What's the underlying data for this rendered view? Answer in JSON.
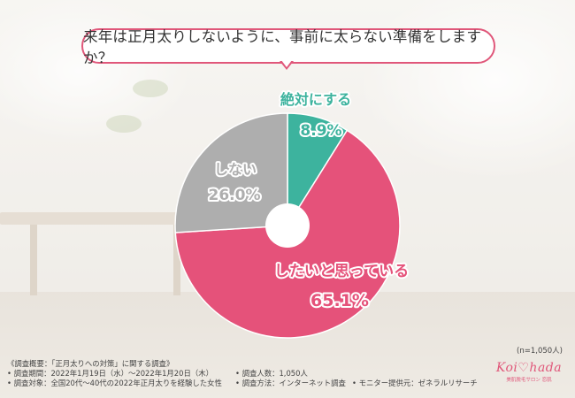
{
  "question": "来年は正月太りしないように、事前に太らない準備をしますか？",
  "chart_data": {
    "type": "pie",
    "title": "来年は正月太りしないように、事前に太らない準備をしますか？",
    "slices": [
      {
        "label": "絶対にする",
        "value": 8.9,
        "display": "8.9%",
        "color": "#3db39e"
      },
      {
        "label": "したいと思っている",
        "value": 65.1,
        "display": "65.1%",
        "color": "#e5527a"
      },
      {
        "label": "しない",
        "value": 26.0,
        "display": "26.0%",
        "color": "#aeaeae"
      }
    ],
    "sample_size": "(n=1,050人)"
  },
  "footnote": {
    "heading": "《調査概要：「正月太りへの対策」に関する調査》",
    "period": "• 調査期間：2022年1月19日（水）〜2022年1月20日（木）",
    "count": "• 調査人数：1,050人",
    "target": "• 調査対象：全国20代〜40代の2022年正月太りを経験した女性",
    "method": "• 調査方法：インターネット調査",
    "provider": "• モニター提供元：ゼネラルリサーチ"
  },
  "logo": {
    "name": "Koi♡hada",
    "sub": "美肌脱毛サロン 恋肌"
  }
}
